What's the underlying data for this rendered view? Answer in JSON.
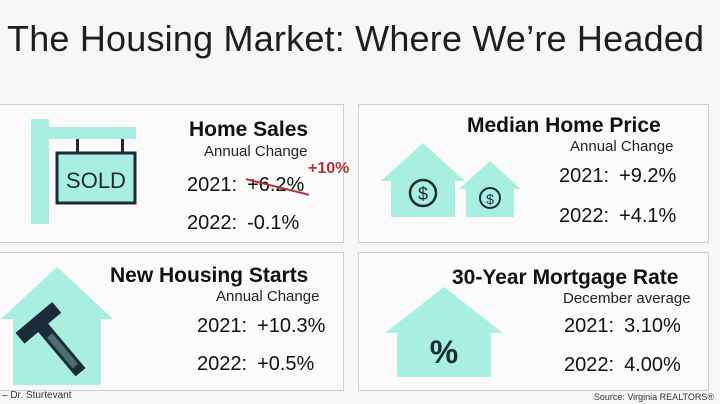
{
  "title": "The Housing Market: Where We’re Headed",
  "colors": {
    "accent_teal": "#a8efe2",
    "dark_navy": "#1c2b3a",
    "strike_red": "#b5303a"
  },
  "panels": {
    "home_sales": {
      "title": "Home Sales",
      "subtitle": "Annual Change",
      "sign_text": "SOLD",
      "rows": [
        {
          "year": "2021:",
          "value": "+6.2%",
          "revised": "+10%"
        },
        {
          "year": "2022:",
          "value": "-0.1%"
        }
      ]
    },
    "median_price": {
      "title": "Median Home Price",
      "subtitle": "Annual Change",
      "rows": [
        {
          "year": "2021:",
          "value": "+9.2%"
        },
        {
          "year": "2022:",
          "value": "+4.1%"
        }
      ]
    },
    "housing_starts": {
      "title": "New Housing Starts",
      "subtitle": "Annual Change",
      "rows": [
        {
          "year": "2021:",
          "value": "+10.3%"
        },
        {
          "year": "2022:",
          "value": "+0.5%"
        }
      ]
    },
    "mortgage_rate": {
      "title": "30-Year Mortgage Rate",
      "subtitle": "December average",
      "icon_text": "%",
      "rows": [
        {
          "year": "2021:",
          "value": "3.10%"
        },
        {
          "year": "2022:",
          "value": "4.00%"
        }
      ]
    }
  },
  "footer": {
    "attribution": "– Dr. Sturtevant",
    "source": "Source: Virginia REALTORS®"
  }
}
